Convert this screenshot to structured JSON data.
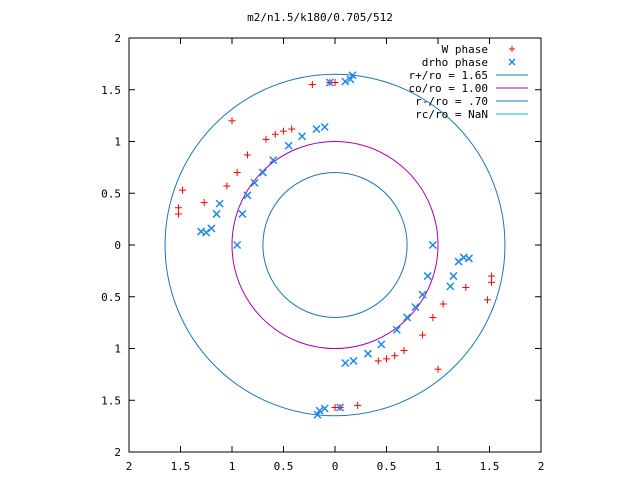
{
  "chart_data": {
    "type": "scatter",
    "title": "m2/n1.5/k180/0.705/512",
    "xlim": [
      -2,
      2
    ],
    "ylim": [
      -2,
      2
    ],
    "xticks": [
      -2,
      -1.5,
      -1,
      -0.5,
      0,
      0.5,
      1,
      1.5,
      2
    ],
    "yticks": [
      -2,
      -1.5,
      -1,
      -0.5,
      0,
      0.5,
      1,
      1.5,
      2
    ],
    "xtick_labels": [
      "2",
      "1.5",
      "1",
      "0.5",
      "0",
      "0.5",
      "1",
      "1.5",
      "2"
    ],
    "ytick_labels": [
      "2",
      "1.5",
      "1",
      "0.5",
      "0",
      "0.5",
      "1",
      "1.5",
      "2"
    ],
    "grid": false,
    "legend_position": "top-right",
    "series": [
      {
        "name": "W phase",
        "marker": "plus",
        "color": "#ff0000",
        "points": [
          [
            -1.52,
            0.3
          ],
          [
            -1.52,
            0.36
          ],
          [
            -1.48,
            0.53
          ],
          [
            -1.27,
            0.41
          ],
          [
            -1.05,
            0.57
          ],
          [
            -0.95,
            0.7
          ],
          [
            -0.85,
            0.87
          ],
          [
            -1.0,
            1.2
          ],
          [
            -0.67,
            1.02
          ],
          [
            -0.58,
            1.07
          ],
          [
            -0.5,
            1.1
          ],
          [
            -0.42,
            1.12
          ],
          [
            -0.22,
            1.55
          ],
          [
            -0.05,
            1.57
          ],
          [
            0.0,
            1.57
          ],
          [
            1.52,
            -0.3
          ],
          [
            1.52,
            -0.36
          ],
          [
            1.48,
            -0.53
          ],
          [
            1.27,
            -0.41
          ],
          [
            1.05,
            -0.57
          ],
          [
            0.95,
            -0.7
          ],
          [
            0.85,
            -0.87
          ],
          [
            1.0,
            -1.2
          ],
          [
            0.67,
            -1.02
          ],
          [
            0.58,
            -1.07
          ],
          [
            0.5,
            -1.1
          ],
          [
            0.42,
            -1.12
          ],
          [
            0.22,
            -1.55
          ],
          [
            0.05,
            -1.57
          ],
          [
            0.0,
            -1.57
          ]
        ]
      },
      {
        "name": "drho phase",
        "marker": "cross",
        "color": "#2288ee",
        "points": [
          [
            -1.3,
            0.13
          ],
          [
            -1.25,
            0.12
          ],
          [
            -1.2,
            0.16
          ],
          [
            -1.15,
            0.3
          ],
          [
            -1.12,
            0.4
          ],
          [
            -0.95,
            0.0
          ],
          [
            -0.9,
            0.3
          ],
          [
            -0.85,
            0.48
          ],
          [
            -0.78,
            0.6
          ],
          [
            -0.7,
            0.7
          ],
          [
            -0.6,
            0.82
          ],
          [
            -0.45,
            0.96
          ],
          [
            -0.32,
            1.05
          ],
          [
            -0.18,
            1.12
          ],
          [
            -0.1,
            1.14
          ],
          [
            -0.05,
            1.57
          ],
          [
            0.1,
            1.58
          ],
          [
            0.15,
            1.6
          ],
          [
            0.17,
            1.64
          ],
          [
            1.3,
            -0.13
          ],
          [
            1.25,
            -0.12
          ],
          [
            1.2,
            -0.16
          ],
          [
            1.15,
            -0.3
          ],
          [
            1.12,
            -0.4
          ],
          [
            0.95,
            0.0
          ],
          [
            0.9,
            -0.3
          ],
          [
            0.85,
            -0.48
          ],
          [
            0.78,
            -0.6
          ],
          [
            0.7,
            -0.7
          ],
          [
            0.6,
            -0.82
          ],
          [
            0.45,
            -0.96
          ],
          [
            0.32,
            -1.05
          ],
          [
            0.18,
            -1.12
          ],
          [
            0.1,
            -1.14
          ],
          [
            0.05,
            -1.57
          ],
          [
            -0.1,
            -1.58
          ],
          [
            -0.15,
            -1.6
          ],
          [
            -0.17,
            -1.64
          ]
        ]
      },
      {
        "name": "r+/ro = 1.65",
        "type": "circle",
        "radius": 1.65,
        "color": "#1f77b4"
      },
      {
        "name": "co/ro = 1.00",
        "type": "circle",
        "radius": 1.0,
        "color": "#aa00aa"
      },
      {
        "name": "r-/ro = .70",
        "type": "circle",
        "radius": 0.7,
        "color": "#1f77b4"
      },
      {
        "name": "rc/ro = NaN",
        "type": "circle",
        "radius": null,
        "color": "#00bcd4"
      }
    ]
  }
}
